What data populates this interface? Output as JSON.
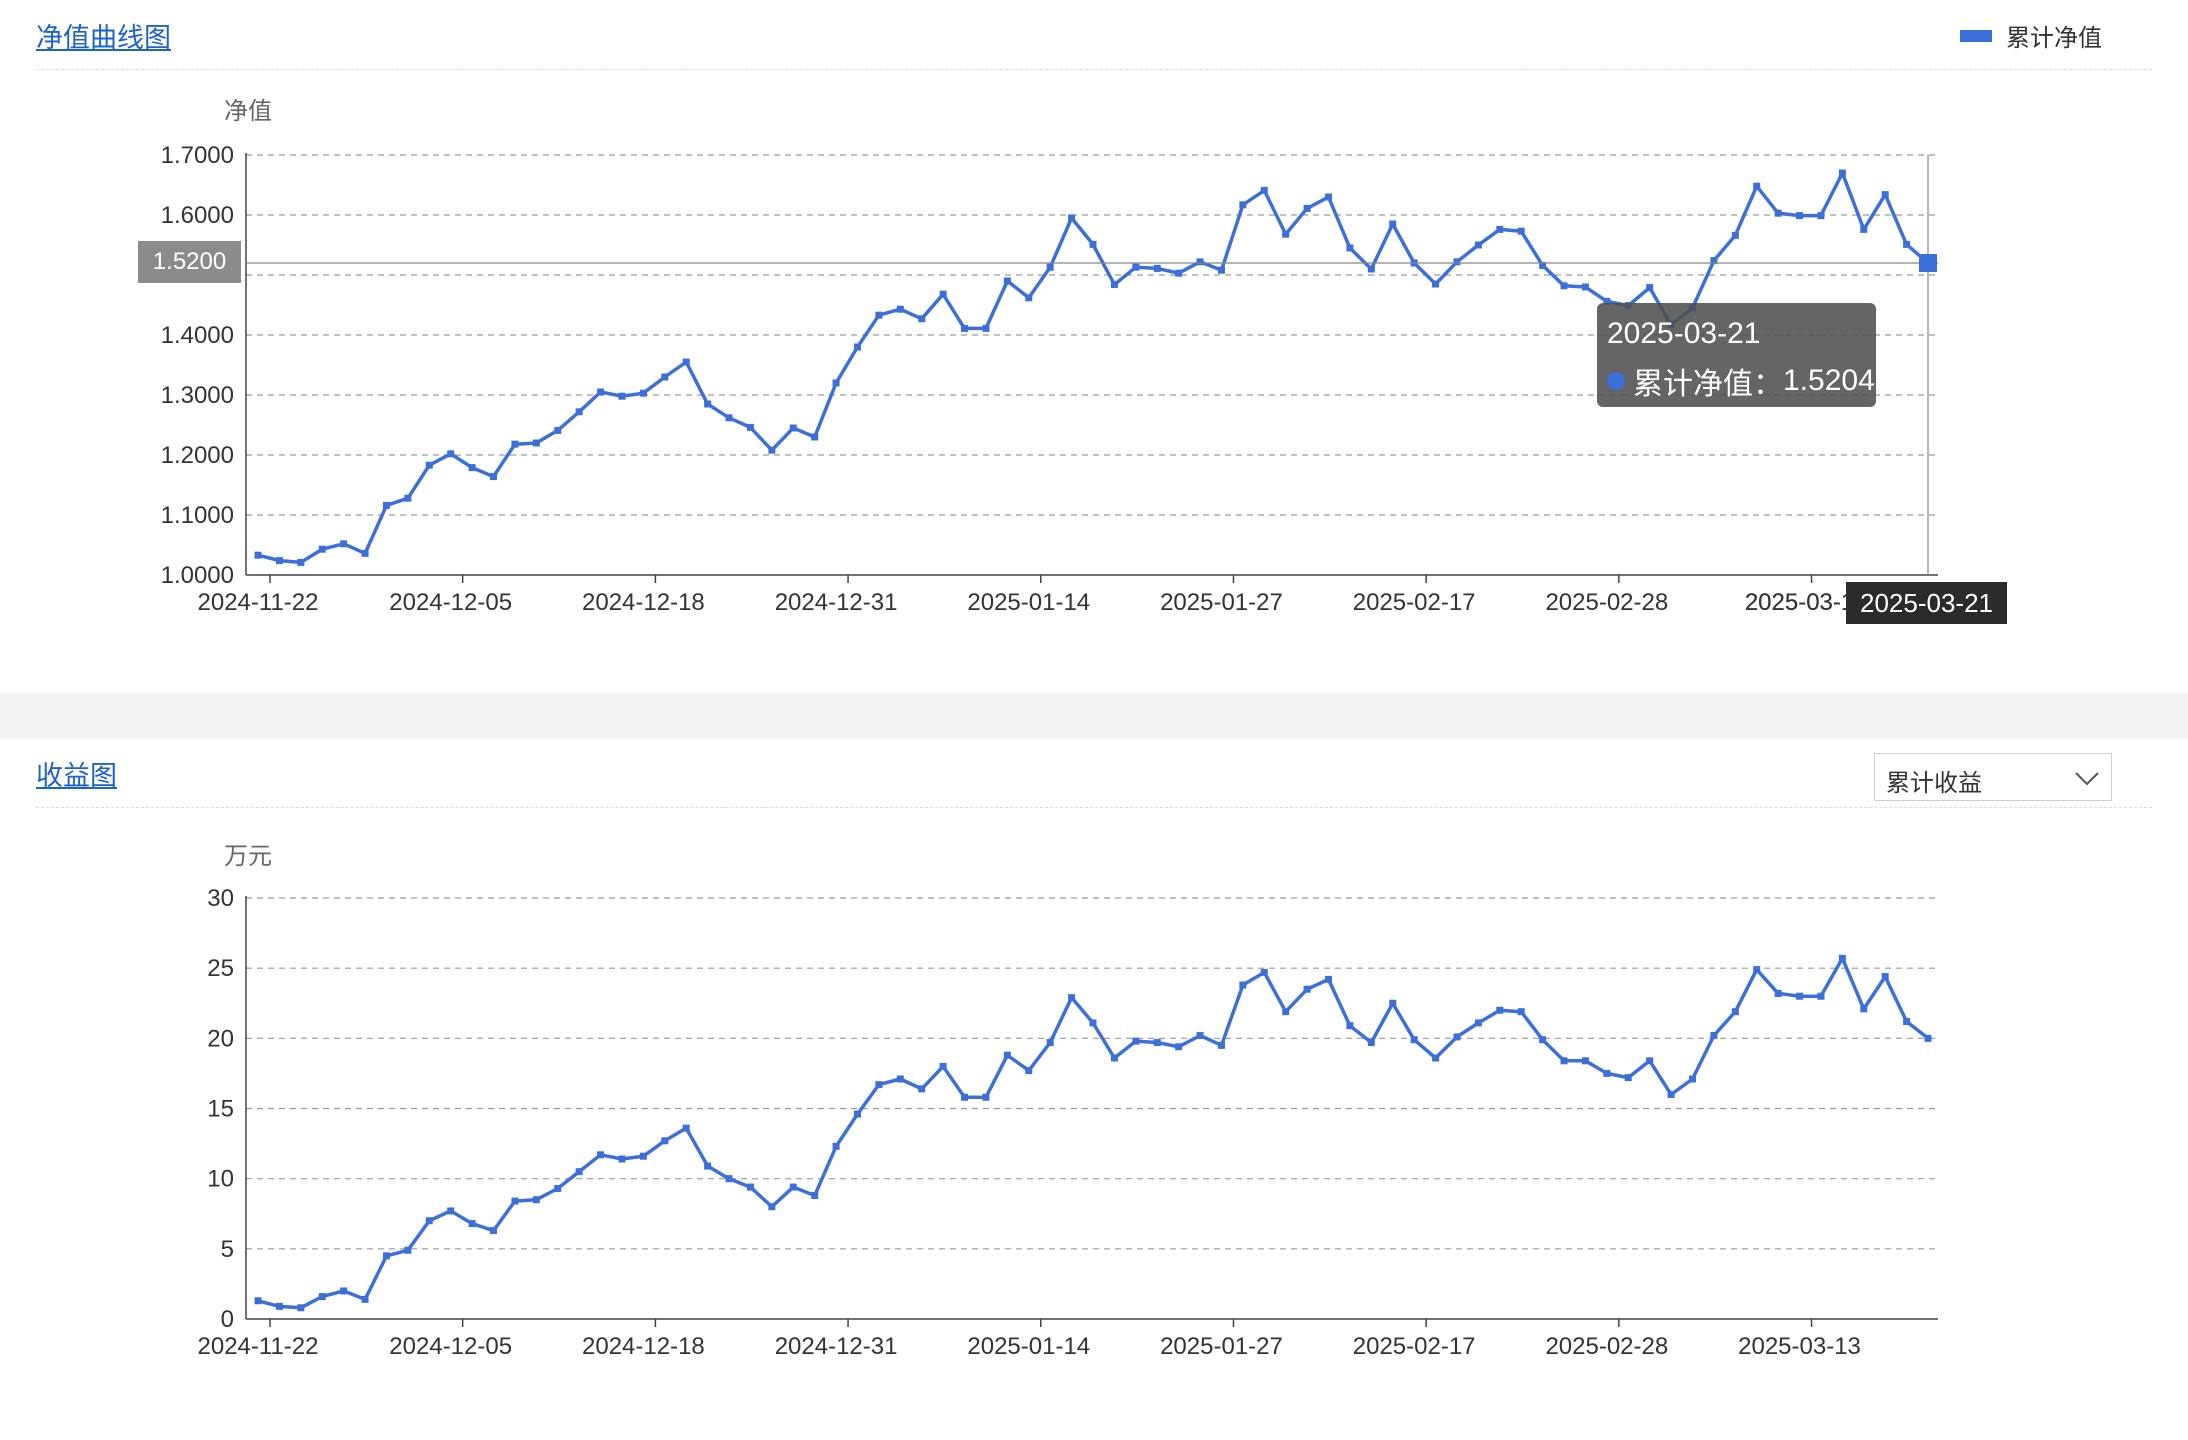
{
  "colors": {
    "line": "#3c6fd9",
    "grid": "#9a9a9a",
    "title_link": "#1d62c9"
  },
  "nav_panel": {
    "title": "净值曲线图",
    "legend_label": "累计净值",
    "y_unit": "净值",
    "pointer_y_label": "1.5200",
    "pointer_x_label": "2025-03-21",
    "tooltip": {
      "date": "2025-03-21",
      "series_label": "累计净值：",
      "value": "1.5204"
    }
  },
  "profit_panel": {
    "title": "收益图",
    "select_value": "累计收益",
    "select_icon": "chevron-down-icon",
    "y_unit": "万元"
  },
  "chart_data": [
    {
      "type": "line",
      "title": "净值曲线图",
      "ylabel": "净值",
      "ylim": [
        1.0,
        1.7
      ],
      "yticks": [
        "1.0000",
        "1.1000",
        "1.2000",
        "1.3000",
        "1.4000",
        "1.5000",
        "1.6000",
        "1.7000"
      ],
      "xtick_labels": [
        "2024-11-22",
        "2024-12-05",
        "2024-12-18",
        "2024-12-31",
        "2025-01-14",
        "2025-01-27",
        "2025-02-17",
        "2025-02-28",
        "2025-03-1",
        "2025-03-21"
      ],
      "grid": true,
      "legend": "top-right",
      "series": [
        {
          "name": "累计净值",
          "values": [
            1.033,
            1.024,
            1.021,
            1.043,
            1.052,
            1.036,
            1.116,
            1.128,
            1.183,
            1.202,
            1.179,
            1.164,
            1.218,
            1.22,
            1.241,
            1.272,
            1.305,
            1.298,
            1.303,
            1.33,
            1.355,
            1.285,
            1.262,
            1.246,
            1.208,
            1.245,
            1.23,
            1.32,
            1.38,
            1.433,
            1.443,
            1.427,
            1.468,
            1.411,
            1.411,
            1.49,
            1.462,
            1.513,
            1.595,
            1.551,
            1.484,
            1.513,
            1.511,
            1.503,
            1.522,
            1.508,
            1.617,
            1.641,
            1.568,
            1.611,
            1.63,
            1.545,
            1.51,
            1.585,
            1.52,
            1.485,
            1.522,
            1.55,
            1.576,
            1.573,
            1.516,
            1.482,
            1.48,
            1.456,
            1.449,
            1.479,
            1.417,
            1.445,
            1.524,
            1.566,
            1.648,
            1.603,
            1.599,
            1.599,
            1.67,
            1.576,
            1.634,
            1.551,
            1.52
          ]
        }
      ]
    },
    {
      "type": "line",
      "title": "收益图",
      "ylabel": "万元",
      "ylim": [
        0,
        30
      ],
      "yticks": [
        "0",
        "5",
        "10",
        "15",
        "20",
        "25",
        "30"
      ],
      "xtick_labels": [
        "2024-11-22",
        "2024-12-05",
        "2024-12-18",
        "2024-12-31",
        "2025-01-14",
        "2025-01-27",
        "2025-02-17",
        "2025-02-28",
        "2025-03-13"
      ],
      "grid": true,
      "series": [
        {
          "name": "累计收益",
          "values": [
            1.3,
            0.9,
            0.8,
            1.6,
            2.0,
            1.4,
            4.5,
            4.9,
            7.0,
            7.7,
            6.8,
            6.3,
            8.4,
            8.5,
            9.3,
            10.5,
            11.7,
            11.4,
            11.6,
            12.7,
            13.6,
            10.9,
            10.0,
            9.4,
            8.0,
            9.4,
            8.8,
            12.3,
            14.6,
            16.7,
            17.1,
            16.4,
            18.0,
            15.8,
            15.8,
            18.8,
            17.7,
            19.7,
            22.9,
            21.1,
            18.6,
            19.8,
            19.7,
            19.4,
            20.2,
            19.5,
            23.8,
            24.7,
            21.9,
            23.5,
            24.2,
            20.9,
            19.7,
            22.5,
            19.9,
            18.6,
            20.1,
            21.1,
            22.0,
            21.9,
            19.9,
            18.4,
            18.4,
            17.5,
            17.2,
            18.4,
            16.0,
            17.1,
            20.2,
            21.9,
            24.9,
            23.2,
            23.0,
            23.0,
            25.7,
            22.1,
            24.4,
            21.2,
            20.0
          ]
        }
      ]
    }
  ]
}
